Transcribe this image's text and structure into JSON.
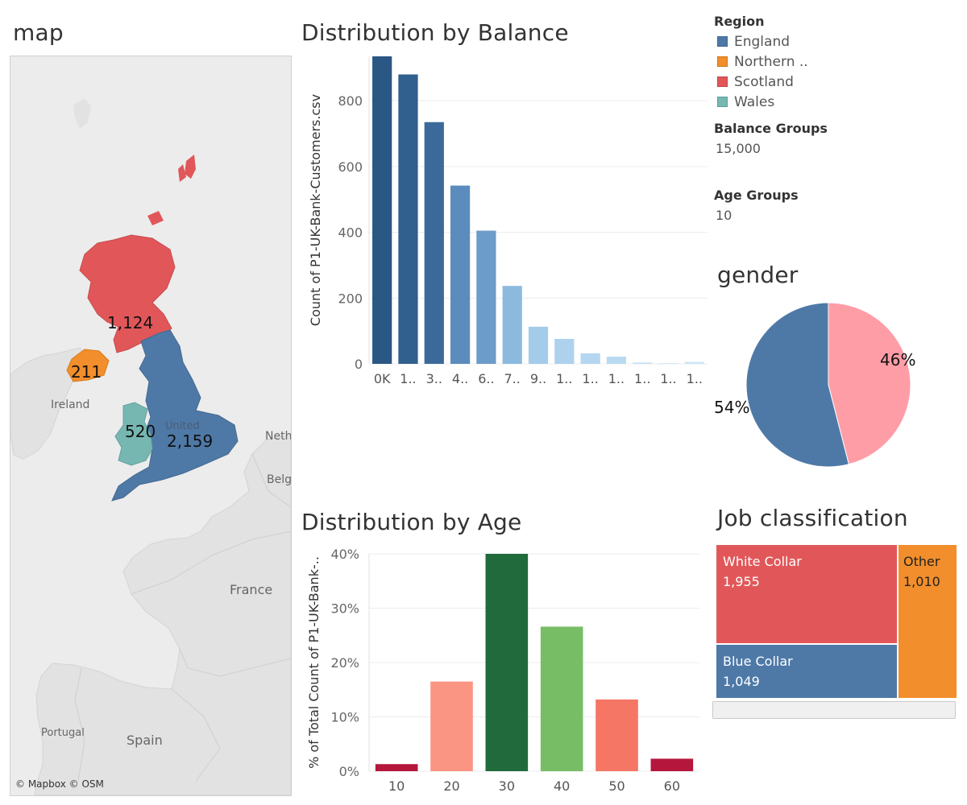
{
  "map": {
    "title": "map",
    "colors": {
      "land": "#e2e2e2",
      "water": "#ececec",
      "england": "#4e79a7",
      "northern_ireland": "#f28e2b",
      "scotland": "#e15759",
      "wales": "#76b7b2"
    },
    "regions": [
      {
        "name": "England",
        "value": "2,159"
      },
      {
        "name": "Northern Ireland",
        "value": "211"
      },
      {
        "name": "Scotland",
        "value": "1,124"
      },
      {
        "name": "Wales",
        "value": "520"
      }
    ],
    "place_labels": {
      "ireland": "Ireland",
      "united_kingdom": "United",
      "netherlands": "Neth",
      "belgium": "Belgi",
      "france": "France",
      "portugal": "Portugal",
      "spain": "Spain"
    },
    "credits": "© Mapbox © OSM"
  },
  "legend": {
    "title": "Region",
    "items": [
      {
        "label": "England",
        "color": "#4e79a7"
      },
      {
        "label": "Northern ..",
        "color": "#f28e2b"
      },
      {
        "label": "Scotland",
        "color": "#e15759"
      },
      {
        "label": "Wales",
        "color": "#76b7b2"
      }
    ]
  },
  "params": {
    "balance": {
      "title": "Balance Groups",
      "value": "15,000"
    },
    "age": {
      "title": "Age Groups",
      "value": "10"
    }
  },
  "chart_data": [
    {
      "type": "bar",
      "title": "Distribution by Balance",
      "ylabel": "Count of P1-UK-Bank-Customers.csv",
      "xlabel": "",
      "categories": [
        "0K",
        "1..",
        "3..",
        "4..",
        "6..",
        "7..",
        "9..",
        "1..",
        "1..",
        "1..",
        "1..",
        "1..",
        "1.."
      ],
      "values": [
        935,
        880,
        735,
        542,
        405,
        237,
        113,
        76,
        32,
        22,
        4,
        2,
        6
      ],
      "ylim": [
        0,
        935
      ],
      "yticks": [
        0,
        200,
        400,
        600,
        800
      ],
      "colors": [
        "#2a5783",
        "#315f8e",
        "#3b6a9a",
        "#5b8cbd",
        "#6c9cc9",
        "#8cbadf",
        "#a4ccea",
        "#aed2ee",
        "#b4d6f0",
        "#b9dbf2",
        "#c3e0f4",
        "#c9e4f6",
        "#cde6f7"
      ]
    },
    {
      "type": "pie",
      "title": "gender",
      "slices": [
        {
          "label": "54%",
          "value": 54,
          "color": "#4e79a7"
        },
        {
          "label": "46%",
          "value": 46,
          "color": "#ff9da7"
        }
      ]
    },
    {
      "type": "bar",
      "title": "Distribution by Age",
      "ylabel": "% of Total Count of P1-UK-Bank-..",
      "xlabel": "",
      "categories": [
        "10",
        "20",
        "30",
        "40",
        "50",
        "60"
      ],
      "values": [
        1.3,
        16.5,
        40,
        26.6,
        13.2,
        2.3
      ],
      "ylim": [
        0,
        40
      ],
      "yticks": [
        0,
        10,
        20,
        30,
        40
      ],
      "ytick_labels": [
        "0%",
        "10%",
        "20%",
        "30%",
        "40%"
      ],
      "colors": [
        "#b5173c",
        "#fb9583",
        "#216a3c",
        "#77bd65",
        "#f57664",
        "#b5173c"
      ]
    },
    {
      "type": "treemap",
      "title": "Job classification",
      "cells": [
        {
          "name": "White Collar",
          "value": "1,955",
          "color": "#e15759"
        },
        {
          "name": "Other",
          "value": "1,010",
          "color": "#f28e2b"
        },
        {
          "name": "Blue Collar",
          "value": "1,049",
          "color": "#4e79a7"
        }
      ]
    }
  ]
}
